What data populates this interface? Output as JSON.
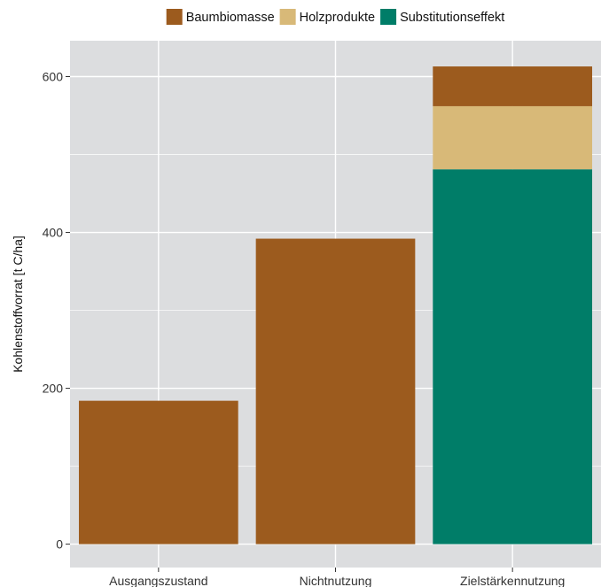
{
  "chart_data": {
    "type": "bar",
    "stacked": true,
    "categories": [
      "Ausgangszustand",
      "Nichtnutzung",
      "Zielstärkennutzung"
    ],
    "series": [
      {
        "name": "Substitutionseffekt",
        "color": "#007D68",
        "values": [
          0,
          0,
          481
        ]
      },
      {
        "name": "Holzprodukte",
        "color": "#D8B978",
        "values": [
          0,
          0,
          81
        ]
      },
      {
        "name": "Baumbiomasse",
        "color": "#9C5B1E",
        "values": [
          184,
          392,
          51
        ]
      }
    ],
    "legend_order": [
      "Baumbiomasse",
      "Holzprodukte",
      "Substitutionseffekt"
    ],
    "legend_position": "top",
    "xlabel": "",
    "ylabel": "Kohlenstoffvorrat [t C/ha]",
    "ylim": [
      -30,
      646
    ],
    "yticks": [
      0,
      200,
      400,
      600
    ],
    "grid": true,
    "panel_background": "#DCDDDF",
    "grid_color": "#FFFFFF"
  }
}
